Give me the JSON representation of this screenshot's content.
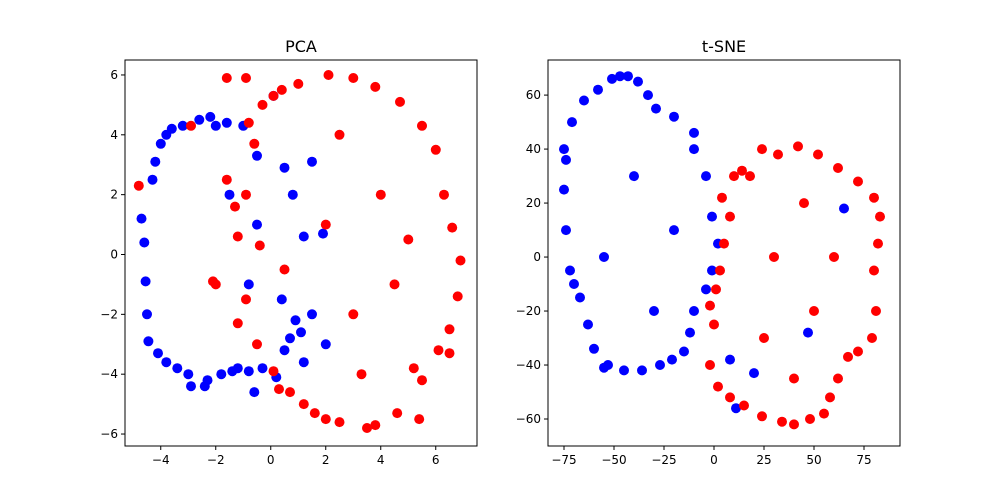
{
  "chart_data": [
    {
      "type": "scatter",
      "title": "PCA",
      "xlabel": "",
      "ylabel": "",
      "xlim": [
        -5.3,
        7.5
      ],
      "ylim": [
        -6.4,
        6.5
      ],
      "xticks": [
        -4,
        -2,
        0,
        2,
        4,
        6
      ],
      "xtick_labels": [
        "−4",
        "−2",
        "0",
        "2",
        "4",
        "6"
      ],
      "yticks": [
        -6,
        -4,
        -2,
        0,
        2,
        4,
        6
      ],
      "ytick_labels": [
        "−6",
        "−4",
        "−2",
        "0",
        "2",
        "4",
        "6"
      ],
      "grid": false,
      "series": [
        {
          "color": "#0000ff",
          "points": [
            [
              -4.7,
              1.2
            ],
            [
              -4.6,
              0.4
            ],
            [
              -4.55,
              -0.9
            ],
            [
              -4.5,
              -2.0
            ],
            [
              -4.45,
              -2.9
            ],
            [
              -4.3,
              2.5
            ],
            [
              -4.2,
              3.1
            ],
            [
              -4.1,
              -3.3
            ],
            [
              -4.0,
              3.7
            ],
            [
              -3.8,
              4.0
            ],
            [
              -3.8,
              -3.6
            ],
            [
              -3.6,
              4.2
            ],
            [
              -3.4,
              -3.8
            ],
            [
              -3.2,
              4.3
            ],
            [
              -3.0,
              -4.0
            ],
            [
              -2.9,
              -4.4
            ],
            [
              -2.6,
              4.5
            ],
            [
              -2.4,
              -4.4
            ],
            [
              -2.3,
              -4.2
            ],
            [
              -2.2,
              4.6
            ],
            [
              -2.0,
              4.3
            ],
            [
              -1.8,
              -4.0
            ],
            [
              -1.6,
              4.4
            ],
            [
              -1.4,
              -3.9
            ],
            [
              -1.2,
              -3.8
            ],
            [
              -1.0,
              4.3
            ],
            [
              -0.8,
              -3.9
            ],
            [
              -0.6,
              -4.6
            ],
            [
              -0.5,
              3.3
            ],
            [
              -0.3,
              -3.8
            ],
            [
              0.2,
              -4.1
            ],
            [
              0.5,
              2.9
            ],
            [
              0.5,
              -3.2
            ],
            [
              0.7,
              -2.8
            ],
            [
              0.9,
              -2.2
            ],
            [
              1.1,
              -2.6
            ],
            [
              1.2,
              0.6
            ],
            [
              1.5,
              3.1
            ],
            [
              1.5,
              -2.0
            ],
            [
              1.2,
              -3.6
            ],
            [
              2.0,
              -3.0
            ],
            [
              0.1,
              5.3
            ],
            [
              -1.5,
              2.0
            ],
            [
              -0.5,
              1.0
            ],
            [
              0.4,
              -1.5
            ],
            [
              -0.8,
              -1.0
            ],
            [
              0.8,
              2.0
            ],
            [
              1.9,
              0.7
            ]
          ]
        },
        {
          "color": "#ff0000",
          "points": [
            [
              -4.8,
              2.3
            ],
            [
              -2.9,
              4.3
            ],
            [
              -1.6,
              5.9
            ],
            [
              -0.9,
              5.9
            ],
            [
              -0.8,
              4.4
            ],
            [
              -0.3,
              5.0
            ],
            [
              0.1,
              5.3
            ],
            [
              0.4,
              5.5
            ],
            [
              1.0,
              5.7
            ],
            [
              2.1,
              6.0
            ],
            [
              3.0,
              5.9
            ],
            [
              3.8,
              5.6
            ],
            [
              4.7,
              5.1
            ],
            [
              5.5,
              4.3
            ],
            [
              6.0,
              3.5
            ],
            [
              6.3,
              2.0
            ],
            [
              6.6,
              0.9
            ],
            [
              6.9,
              -0.2
            ],
            [
              6.8,
              -1.4
            ],
            [
              6.5,
              -2.5
            ],
            [
              6.1,
              -3.2
            ],
            [
              6.5,
              -3.3
            ],
            [
              5.5,
              -4.2
            ],
            [
              5.4,
              -5.5
            ],
            [
              4.6,
              -5.3
            ],
            [
              3.8,
              -5.7
            ],
            [
              3.5,
              -5.8
            ],
            [
              2.5,
              -5.6
            ],
            [
              2.0,
              -5.5
            ],
            [
              1.6,
              -5.3
            ],
            [
              1.2,
              -5.0
            ],
            [
              0.7,
              -4.6
            ],
            [
              0.3,
              -4.5
            ],
            [
              0.1,
              -3.9
            ],
            [
              -0.5,
              -3.0
            ],
            [
              -0.9,
              -1.5
            ],
            [
              -1.2,
              -2.3
            ],
            [
              -1.3,
              1.6
            ],
            [
              -1.2,
              0.6
            ],
            [
              -1.6,
              2.5
            ],
            [
              -2.0,
              -1.0
            ],
            [
              -2.1,
              -0.9
            ],
            [
              -0.6,
              3.7
            ],
            [
              -0.4,
              0.3
            ],
            [
              -0.9,
              2.0
            ],
            [
              0.5,
              -0.5
            ],
            [
              4.5,
              -1.0
            ],
            [
              4.0,
              2.0
            ],
            [
              2.0,
              1.0
            ],
            [
              3.0,
              -2.0
            ],
            [
              5.0,
              0.5
            ],
            [
              2.5,
              4.0
            ],
            [
              3.3,
              -4.0
            ],
            [
              5.2,
              -3.8
            ]
          ]
        }
      ]
    },
    {
      "type": "scatter",
      "title": "t-SNE",
      "xlabel": "",
      "ylabel": "",
      "xlim": [
        -83,
        93
      ],
      "ylim": [
        -70,
        73
      ],
      "xticks": [
        -75,
        -50,
        -25,
        0,
        25,
        50,
        75
      ],
      "xtick_labels": [
        "−75",
        "−50",
        "−25",
        "0",
        "25",
        "50",
        "75"
      ],
      "yticks": [
        -60,
        -40,
        -20,
        0,
        20,
        40,
        60
      ],
      "ytick_labels": [
        "−60",
        "−40",
        "−20",
        "0",
        "20",
        "40",
        "60"
      ],
      "grid": false,
      "series": [
        {
          "color": "#0000ff",
          "points": [
            [
              -47,
              67
            ],
            [
              -43,
              67
            ],
            [
              -38,
              65
            ],
            [
              -33,
              60
            ],
            [
              -29,
              55
            ],
            [
              -20,
              52
            ],
            [
              -10,
              46
            ],
            [
              -10,
              40
            ],
            [
              -4,
              30
            ],
            [
              -1,
              15
            ],
            [
              2,
              5
            ],
            [
              -1,
              -5
            ],
            [
              -4,
              -12
            ],
            [
              -10,
              -20
            ],
            [
              -12,
              -28
            ],
            [
              -15,
              -35
            ],
            [
              -21,
              -38
            ],
            [
              -27,
              -40
            ],
            [
              -36,
              -42
            ],
            [
              -45,
              -42
            ],
            [
              -53,
              -40
            ],
            [
              -60,
              -34
            ],
            [
              -63,
              -25
            ],
            [
              -67,
              -15
            ],
            [
              -72,
              -5
            ],
            [
              -74,
              10
            ],
            [
              -75,
              25
            ],
            [
              -75,
              40
            ],
            [
              -71,
              50
            ],
            [
              -65,
              58
            ],
            [
              -58,
              62
            ],
            [
              -51,
              66
            ],
            [
              -74,
              36
            ],
            [
              -70,
              -10
            ],
            [
              -55,
              -41
            ],
            [
              11,
              -56
            ],
            [
              8,
              -38
            ],
            [
              47,
              -28
            ],
            [
              65,
              18
            ],
            [
              20,
              -43
            ],
            [
              -40,
              30
            ],
            [
              -30,
              -20
            ],
            [
              -55,
              0
            ],
            [
              -20,
              10
            ]
          ]
        },
        {
          "color": "#ff0000",
          "points": [
            [
              18,
              30
            ],
            [
              24,
              40
            ],
            [
              32,
              38
            ],
            [
              42,
              41
            ],
            [
              52,
              38
            ],
            [
              62,
              33
            ],
            [
              72,
              28
            ],
            [
              80,
              22
            ],
            [
              83,
              15
            ],
            [
              82,
              5
            ],
            [
              80,
              -5
            ],
            [
              81,
              -20
            ],
            [
              79,
              -30
            ],
            [
              72,
              -35
            ],
            [
              67,
              -37
            ],
            [
              62,
              -45
            ],
            [
              58,
              -52
            ],
            [
              55,
              -58
            ],
            [
              48,
              -60
            ],
            [
              40,
              -62
            ],
            [
              34,
              -61
            ],
            [
              24,
              -59
            ],
            [
              15,
              -55
            ],
            [
              8,
              -52
            ],
            [
              2,
              -48
            ],
            [
              -2,
              -40
            ],
            [
              0,
              -25
            ],
            [
              -2,
              -18
            ],
            [
              1,
              -12
            ],
            [
              3,
              -5
            ],
            [
              5,
              5
            ],
            [
              8,
              15
            ],
            [
              4,
              22
            ],
            [
              10,
              30
            ],
            [
              14,
              32
            ],
            [
              30,
              0
            ],
            [
              50,
              -20
            ],
            [
              45,
              20
            ],
            [
              60,
              0
            ],
            [
              25,
              -30
            ],
            [
              40,
              -45
            ]
          ]
        }
      ]
    }
  ]
}
